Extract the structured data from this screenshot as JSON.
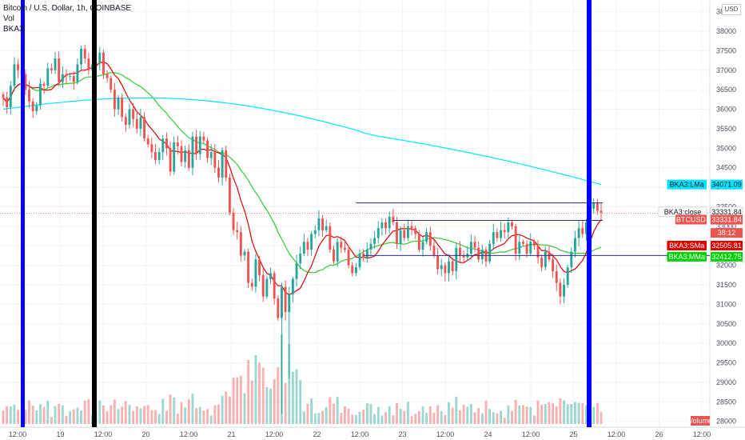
{
  "legend": {
    "symbol_line": "Bitcoin / U.S. Dollar, 1h, COINBASE",
    "vol": "Vol",
    "indicator": "BKA3"
  },
  "currency": "USD",
  "price_axis": {
    "min": 27850,
    "max": 38800,
    "ticks": [
      38500,
      38000,
      37500,
      37000,
      36500,
      36000,
      35500,
      35000,
      34500,
      34000,
      33500,
      33000,
      32500,
      32000,
      31500,
      31000,
      30500,
      30000,
      29500,
      29000,
      28500,
      28000
    ]
  },
  "time_axis": {
    "labels": [
      "12:00",
      "19",
      "12:00",
      "20",
      "12:00",
      "21",
      "12:00",
      "22",
      "12:00",
      "23",
      "12:00",
      "24",
      "12:00",
      "25",
      "12:00",
      "26",
      "12:00"
    ]
  },
  "tags": [
    {
      "label": "BKA3:LMa",
      "value": "34071.09",
      "price": 34071.09,
      "bg": "#00e5ff",
      "fg": "#131722"
    },
    {
      "label": "BKA3:close",
      "value": "33331.84",
      "price": 33370,
      "bg": "#ffffff",
      "fg": "#131722"
    },
    {
      "label": "BTCUSD",
      "value": "33331.84",
      "price": 33170,
      "bg": "#ef5350",
      "fg": "#ffffff"
    },
    {
      "label": "",
      "value": "38:12",
      "price": 32830,
      "bg": "#ef5350",
      "fg": "#ffffff"
    },
    {
      "label": "BKA3:SMa",
      "value": "32505.81",
      "price": 32505.81,
      "bg": "#e00000",
      "fg": "#ffffff"
    },
    {
      "label": "BKA3:MMa",
      "value": "32412.75",
      "price": 32220,
      "bg": "#00d100",
      "fg": "#ffffff"
    }
  ],
  "volume_tag": "Volume",
  "colors": {
    "up": "#26a69a",
    "down": "#ef5350",
    "lma": "#00e5ff",
    "mma": "#33cc33",
    "sma": "#e00000",
    "blue_line": "#0000ff",
    "black_line": "#000000",
    "hline": "#2d2d8a"
  },
  "chart_data": {
    "type": "candlestick",
    "title": "Bitcoin / U.S. Dollar, 1h, COINBASE",
    "ylim": [
      27850,
      38800
    ],
    "close_series": [
      36300,
      36050,
      36600,
      37150,
      37000,
      36900,
      36500,
      36200,
      35950,
      36100,
      36650,
      36600,
      37050,
      37000,
      37300,
      36700,
      36900,
      36850,
      36850,
      36700,
      37150,
      37550,
      37300,
      37000,
      37150,
      37200,
      37450,
      36900,
      36800,
      36500,
      36000,
      36300,
      35800,
      35600,
      36000,
      35750,
      35500,
      35800,
      35250,
      35100,
      34900,
      34700,
      34900,
      35250,
      35000,
      34400,
      35150,
      35050,
      34650,
      34950,
      34500,
      35300,
      34850,
      35300,
      35200,
      34750,
      34900,
      34500,
      34250,
      34950,
      34250,
      33350,
      32900,
      32850,
      32250,
      32350,
      31550,
      31450,
      32150,
      31750,
      31200,
      31650,
      31800,
      31150,
      30650,
      31450,
      30800,
      31250,
      31650,
      32050,
      32300,
      32600,
      32400,
      32800,
      32900,
      33200,
      32900,
      33000,
      32400,
      32100,
      32600,
      32450,
      32400,
      32000,
      31800,
      31950,
      32300,
      32200,
      32400,
      32550,
      32700,
      32950,
      33100,
      32950,
      33250,
      33100,
      32550,
      32900,
      32700,
      33000,
      32950,
      32800,
      32400,
      32600,
      32850,
      32500,
      32250,
      31900,
      32000,
      31800,
      32100,
      31850,
      32450,
      32250,
      32200,
      32300,
      32600,
      32450,
      32150,
      32400,
      32100,
      32550,
      32850,
      32700,
      32900,
      32850,
      33100,
      33000,
      32300,
      32600,
      32550,
      32300,
      32600,
      32500,
      32200,
      31950,
      32350,
      32150,
      31850,
      31550,
      31200,
      31500,
      31950,
      32350,
      32700,
      32950,
      32800,
      33100,
      33450,
      33600,
      33400,
      33350
    ],
    "smoothing": {
      "SMa": 8,
      "MMa": 21,
      "LMa_curve": "slow"
    },
    "horizontal_levels": [
      33600,
      33150,
      32250
    ],
    "vertical_markers": [
      "blue",
      "black",
      "blue"
    ]
  }
}
